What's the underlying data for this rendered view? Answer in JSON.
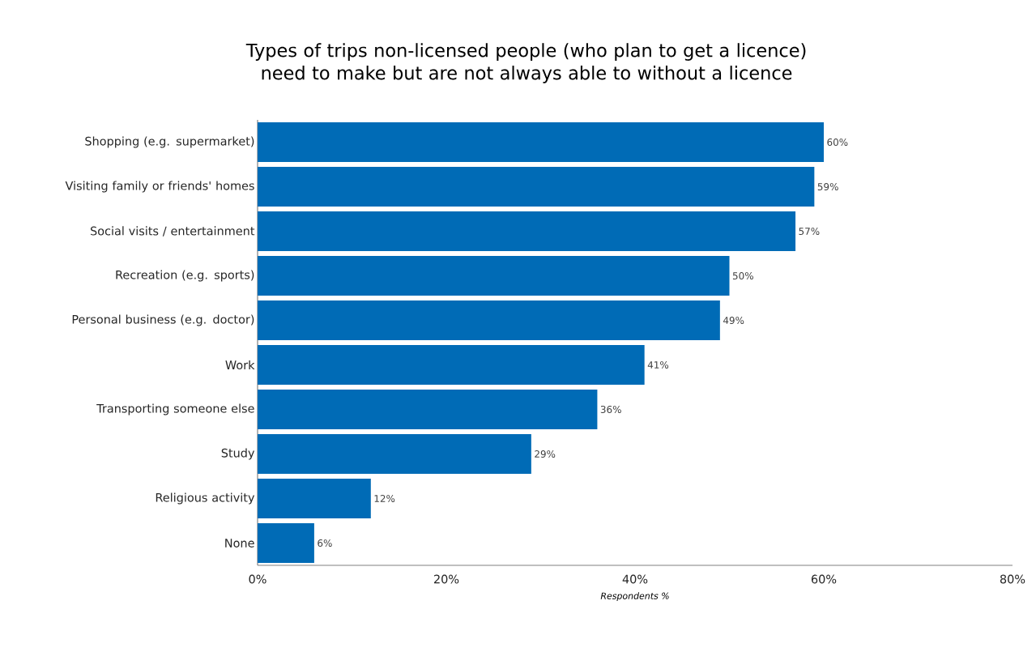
{
  "chart_data": {
    "type": "bar",
    "orientation": "horizontal",
    "title": "Types of trips non-licensed people (who plan to get a licence) need to make but are not always able to without a licence",
    "xlabel": "Respondents %",
    "categories": [
      "Shopping (e.g. supermarket)",
      "Visiting family or friends' homes",
      "Social visits / entertainment",
      "Recreation (e.g. sports)",
      "Personal business (e.g. doctor)",
      "Work",
      "Transporting someone else",
      "Study",
      "Religious activity",
      "None"
    ],
    "values": [
      60,
      59,
      57,
      50,
      49,
      41,
      36,
      29,
      12,
      6
    ],
    "value_labels": [
      "60%",
      "59%",
      "57%",
      "50%",
      "49%",
      "41%",
      "36%",
      "29%",
      "12%",
      "6%"
    ],
    "color": "#006bb6",
    "xlim": [
      0,
      80
    ],
    "xticks": [
      {
        "value": 0,
        "label": "0%"
      },
      {
        "value": 20,
        "label": "20%"
      },
      {
        "value": 40,
        "label": "40%"
      },
      {
        "value": 60,
        "label": "60%"
      },
      {
        "value": 80,
        "label": "80%"
      }
    ],
    "grid": false
  }
}
